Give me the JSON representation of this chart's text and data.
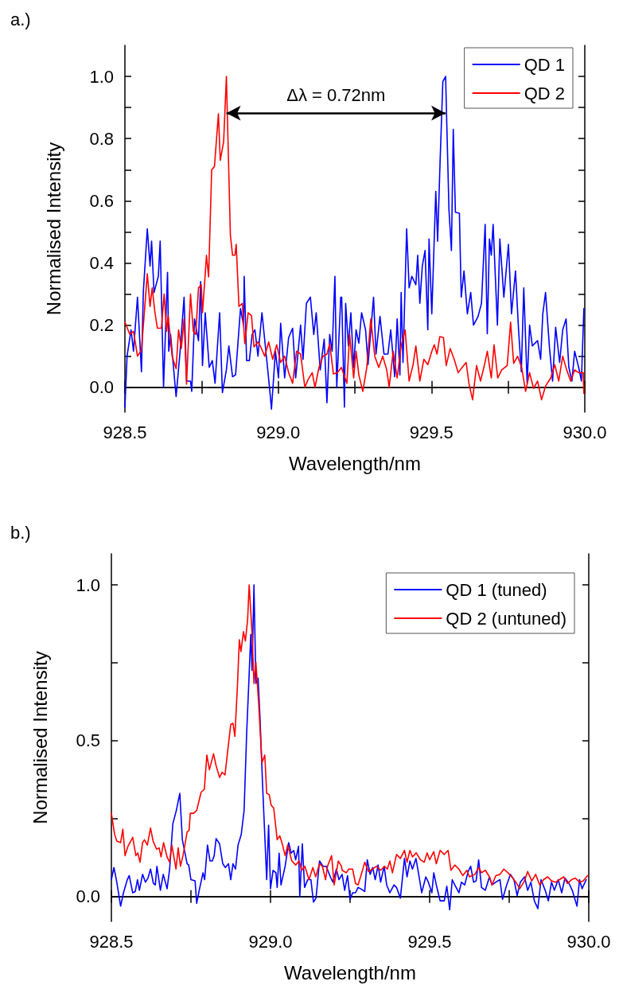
{
  "chart_data": [
    {
      "type": "line",
      "title": "a.)",
      "xlabel": "Wavelength/nm",
      "ylabel": "Normalised Intensity",
      "xlim": [
        928.5,
        930.0
      ],
      "ylim": [
        -0.08,
        1.1
      ],
      "xticks": [
        {
          "value": 928.5,
          "label": "928.5"
        },
        {
          "value": 928.75,
          "label": null
        },
        {
          "value": 929.0,
          "label": "929.0"
        },
        {
          "value": 929.25,
          "label": null
        },
        {
          "value": 929.5,
          "label": "929.5"
        },
        {
          "value": 929.75,
          "label": null
        },
        {
          "value": 930.0,
          "label": "930.0"
        }
      ],
      "yticks": [
        {
          "value": 0,
          "label": "0.0"
        },
        {
          "value": 0.1,
          "label": null
        },
        0.2,
        {
          "value": 0.3,
          "label": null
        },
        0.4,
        {
          "value": 0.5,
          "label": null
        },
        0.6,
        {
          "value": 0.7,
          "label": null
        },
        0.8,
        {
          "value": 0.9,
          "label": null
        },
        {
          "value": 1.0,
          "label": "1.0"
        }
      ],
      "legend": "top right",
      "marker": "none",
      "line_style": "solid",
      "annotations": [
        "Δλ = 0.72nm"
      ],
      "series": [
        {
          "name": "QD 1",
          "color": "#0000ff",
          "x": [
            928.5,
            928.507,
            928.52,
            928.528,
            928.541,
            928.554,
            928.56,
            928.573,
            928.582,
            928.587,
            928.595,
            928.609,
            928.615,
            928.626,
            928.639,
            928.643,
            928.649,
            928.667,
            928.68,
            928.693,
            928.701,
            928.714,
            928.718,
            928.727,
            928.74,
            928.747,
            928.753,
            928.762,
            928.775,
            928.785,
            928.794,
            928.809,
            928.818,
            928.831,
            928.839,
            928.851,
            928.861,
            928.877,
            928.887,
            928.889,
            928.897,
            928.906,
            928.915,
            928.924,
            928.934,
            928.947,
            928.958,
            928.972,
            928.978,
            928.991,
            929.001,
            929.008,
            929.021,
            929.034,
            929.047,
            929.057,
            929.073,
            929.081,
            929.092,
            929.105,
            929.116,
            929.124,
            929.137,
            929.15,
            929.159,
            929.168,
            929.176,
            929.185,
            929.191,
            929.204,
            929.207,
            929.216,
            929.22,
            929.229,
            929.237,
            929.246,
            929.254,
            929.263,
            929.272,
            929.285,
            929.293,
            929.311,
            929.319,
            929.332,
            929.345,
            929.358,
            929.367,
            929.38,
            929.388,
            929.397,
            929.401,
            929.407,
            929.419,
            929.427,
            929.436,
            929.449,
            929.455,
            929.462,
            929.47,
            929.479,
            929.488,
            929.492,
            929.501,
            929.514,
            929.52,
            929.528,
            929.537,
            929.546,
            929.557,
            929.565,
            929.571,
            929.578,
            929.591,
            929.597,
            929.606,
            929.617,
            929.628,
            929.637,
            929.652,
            929.663,
            929.675,
            929.682,
            929.689,
            929.695,
            929.701,
            929.715,
            929.723,
            929.736,
            929.751,
            929.761,
            929.774,
            929.784,
            929.793,
            929.801,
            929.812,
            929.82,
            929.829,
            929.846,
            929.856,
            929.863,
            929.872,
            929.885,
            929.895,
            929.905,
            929.918,
            929.928,
            929.939,
            929.948,
            929.958,
            929.967,
            929.98,
            929.989,
            929.997
          ],
          "values": [
            -0.064,
            0.1,
            0.185,
            0.116,
            0.29,
            0.05,
            0.305,
            0.51,
            0.39,
            0.47,
            0.305,
            0.357,
            0.47,
            0.0,
            0.37,
            0.116,
            0.17,
            -0.03,
            0.116,
            0.29,
            0.02,
            0.02,
            -0.013,
            0.22,
            0.15,
            0.34,
            0.07,
            0.24,
            0.064,
            0.086,
            0.013,
            0.24,
            -0.017,
            0.056,
            0.133,
            0.034,
            0.04,
            0.253,
            0.2,
            0.357,
            0.086,
            0.086,
            0.17,
            0.185,
            0.1,
            0.24,
            0.133,
            -0.004,
            -0.07,
            0.116,
            0.03,
            0.206,
            0.03,
            0.16,
            0.19,
            0.03,
            0.2,
            0.09,
            0.27,
            0.29,
            0.17,
            0.24,
            0.056,
            0.155,
            -0.05,
            0.17,
            0.116,
            0.357,
            0.0,
            0.29,
            0.29,
            -0.064,
            0.27,
            0.133,
            0.24,
            0.064,
            0.185,
            0.142,
            0.24,
            0.185,
            0.073,
            0.29,
            0.107,
            0.228,
            0.107,
            0.107,
            0.185,
            0.034,
            0.22,
            0.04,
            0.305,
            0.08,
            0.51,
            0.32,
            0.357,
            0.33,
            0.425,
            0.27,
            0.39,
            0.44,
            0.185,
            0.477,
            0.236,
            0.63,
            0.47,
            0.726,
            0.984,
            1.0,
            0.57,
            0.44,
            0.83,
            0.563,
            0.56,
            0.29,
            0.374,
            0.236,
            0.305,
            0.2,
            0.228,
            0.27,
            0.524,
            0.172,
            0.477,
            0.425,
            0.524,
            0.2,
            0.477,
            0.29,
            0.46,
            0.236,
            0.374,
            0.185,
            0.05,
            0.32,
            0.013,
            0.2,
            0.133,
            0.15,
            0.09,
            0.236,
            0.305,
            0.125,
            0.02,
            0.193,
            0.08,
            0.185,
            0.22,
            0.064,
            0.02,
            0.116,
            0.064,
            0.02,
            0.253
          ]
        },
        {
          "name": "QD 2",
          "color": "#ff0000",
          "x": [
            928.5,
            928.516,
            928.528,
            928.541,
            928.554,
            928.573,
            928.582,
            928.589,
            928.598,
            928.606,
            928.619,
            928.628,
            928.636,
            928.641,
            928.654,
            928.667,
            928.675,
            928.684,
            928.693,
            928.701,
            928.714,
            928.723,
            928.731,
            928.74,
            928.749,
            928.753,
            928.762,
            928.766,
            928.773,
            928.783,
            928.792,
            928.805,
            928.811,
            928.822,
            928.831,
            928.844,
            928.851,
            928.859,
            928.863,
            928.872,
            928.883,
            928.891,
            928.902,
            928.913,
            928.921,
            928.934,
            928.943,
            928.956,
            928.969,
            928.982,
            928.995,
            929.008,
            929.021,
            929.034,
            929.047,
            929.06,
            929.073,
            929.087,
            929.098,
            929.111,
            929.12,
            929.133,
            929.146,
            929.159,
            929.168,
            929.18,
            929.193,
            929.206,
            929.224,
            929.233,
            929.246,
            929.254,
            929.263,
            929.276,
            929.289,
            929.302,
            929.315,
            929.328,
            929.341,
            929.354,
            929.362,
            929.375,
            929.388,
            929.401,
            929.414,
            929.427,
            929.44,
            929.449,
            929.462,
            929.475,
            929.488,
            929.501,
            929.509,
            929.518,
            929.527,
            929.539,
            929.548,
            929.561,
            929.574,
            929.587,
            929.6,
            929.613,
            929.622,
            929.634,
            929.647,
            929.66,
            929.673,
            929.682,
            929.695,
            929.704,
            929.716,
            929.729,
            929.747,
            929.758,
            929.768,
            929.781,
            929.794,
            929.807,
            929.82,
            929.833,
            929.846,
            929.859,
            929.872,
            929.889,
            929.902,
            929.915,
            929.928,
            929.941,
            929.954,
            929.967,
            929.98,
            929.995,
            929.997
          ],
          "values": [
            0.21,
            0.17,
            0.18,
            0.1,
            0.12,
            0.365,
            0.26,
            0.32,
            0.24,
            0.19,
            0.19,
            0.3,
            0.18,
            0.23,
            0.1,
            0.06,
            0.185,
            0.125,
            0.22,
            0.01,
            0.3,
            0.18,
            0.17,
            0.32,
            0.33,
            0.24,
            0.365,
            0.425,
            0.355,
            0.7,
            0.71,
            0.88,
            0.73,
            0.79,
            1.0,
            0.49,
            0.425,
            0.425,
            0.46,
            0.26,
            0.27,
            0.14,
            0.24,
            0.23,
            0.13,
            0.146,
            0.13,
            0.1,
            0.146,
            0.09,
            0.137,
            0.08,
            0.1,
            0.047,
            0.013,
            0.116,
            0.107,
            0.0,
            0.026,
            0.047,
            0.0,
            0.064,
            0.1,
            0.107,
            0.14,
            0.043,
            0.047,
            0.064,
            0.013,
            0.17,
            0.03,
            0.116,
            0.04,
            -0.013,
            0.064,
            0.22,
            0.1,
            0.064,
            0.1,
            0.056,
            0.0,
            0.116,
            0.03,
            0.133,
            0.185,
            0.02,
            0.073,
            0.133,
            0.02,
            0.09,
            0.073,
            0.116,
            0.137,
            0.107,
            0.163,
            0.16,
            0.07,
            0.125,
            0.09,
            0.047,
            0.064,
            0.08,
            0.013,
            -0.04,
            0.07,
            0.02,
            0.073,
            0.116,
            0.03,
            0.137,
            0.03,
            0.056,
            0.07,
            0.21,
            0.077,
            0.1,
            0.064,
            -0.013,
            0.047,
            -0.004,
            0.02,
            -0.04,
            0.004,
            0.03,
            0.073,
            0.02,
            0.1,
            0.056,
            0.02,
            0.056,
            0.047,
            0.047,
            -0.02
          ]
        }
      ]
    },
    {
      "type": "line",
      "title": "b.)",
      "xlabel": "Wavelength/nm",
      "ylabel": "Normalised Intensity",
      "xlim": [
        928.5,
        930.0
      ],
      "ylim": [
        -0.08,
        1.1
      ],
      "xticks": [
        {
          "value": 928.5,
          "label": "928.5"
        },
        {
          "value": 928.75,
          "label": null
        },
        {
          "value": 929.0,
          "label": "929.0"
        },
        {
          "value": 929.25,
          "label": null
        },
        {
          "value": 929.5,
          "label": "929.5"
        },
        {
          "value": 929.75,
          "label": null
        },
        {
          "value": 930.0,
          "label": "930.0"
        }
      ],
      "yticks": [
        {
          "value": 0,
          "label": "0.0"
        },
        {
          "value": 0.25,
          "label": null
        },
        0.5,
        {
          "value": 0.75,
          "label": null
        },
        {
          "value": 1.0,
          "label": "1.0"
        }
      ],
      "legend": "top right",
      "marker": "none",
      "line_style": "solid",
      "series": [
        {
          "name": "QD 1 (tuned)",
          "color": "#0000ff",
          "x": [
            928.5,
            928.508,
            928.517,
            928.529,
            928.538,
            928.55,
            928.556,
            928.567,
            928.575,
            928.582,
            928.588,
            928.598,
            928.607,
            928.615,
            928.623,
            928.632,
            928.638,
            928.643,
            928.654,
            928.663,
            928.675,
            928.683,
            928.693,
            928.704,
            928.715,
            928.723,
            928.738,
            928.743,
            928.75,
            928.763,
            928.768,
            928.777,
            928.788,
            928.793,
            928.802,
            928.81,
            928.817,
            928.823,
            928.829,
            928.84,
            928.85,
            928.858,
            928.868,
            928.875,
            928.882,
            928.89,
            928.898,
            928.908,
            928.917,
            928.925,
            928.932,
            928.938,
            928.942,
            928.948,
            928.954,
            928.961,
            928.967,
            928.975,
            928.988,
            928.994,
            929.0,
            929.008,
            929.017,
            929.021,
            929.027,
            929.033,
            929.046,
            929.057,
            929.065,
            929.073,
            929.079,
            929.088,
            929.092,
            929.1,
            929.107,
            929.117,
            929.127,
            929.135,
            929.143,
            929.154,
            929.165,
            929.175,
            929.188,
            929.196,
            929.207,
            929.215,
            929.225,
            929.233,
            929.242,
            929.25,
            929.258,
            929.267,
            929.275,
            929.283,
            929.296,
            929.304,
            929.313,
            929.321,
            929.329,
            929.338,
            929.346,
            929.357,
            929.365,
            929.375,
            929.388,
            929.396,
            929.408,
            929.421,
            929.429,
            929.438,
            929.446,
            929.457,
            929.467,
            929.475,
            929.488,
            929.496,
            929.507,
            929.513,
            929.521,
            929.533,
            929.546,
            929.554,
            929.563,
            929.571,
            929.579,
            929.592,
            929.6,
            929.61,
            929.621,
            929.629,
            929.638,
            929.646,
            929.654,
            929.663,
            929.675,
            929.688,
            929.696,
            929.708,
            929.721,
            929.729,
            929.742,
            929.754,
            929.765,
            929.775,
            929.785,
            929.798,
            929.808,
            929.818,
            929.829,
            929.84,
            929.85,
            929.863,
            929.873,
            929.883,
            929.892,
            929.904,
            929.915,
            929.925,
            929.938,
            929.948,
            929.963,
            929.971,
            929.979,
            929.992
          ],
          "values": [
            0.054,
            0.093,
            0.046,
            -0.031,
            0.012,
            0.054,
            0.067,
            0.012,
            0.016,
            0.054,
            0.02,
            0.071,
            0.046,
            0.059,
            0.088,
            0.042,
            0.037,
            0.097,
            0.02,
            0.071,
            0.025,
            0.088,
            0.233,
            0.276,
            0.331,
            0.182,
            0.105,
            0.101,
            0.054,
            0.05,
            -0.022,
            0.025,
            0.076,
            0.054,
            0.165,
            0.114,
            0.114,
            0.131,
            0.186,
            0.169,
            0.105,
            0.093,
            0.105,
            0.054,
            0.105,
            0.088,
            0.165,
            0.199,
            0.276,
            0.522,
            0.692,
            0.841,
            0.725,
            1.0,
            0.684,
            0.701,
            0.573,
            0.361,
            0.054,
            0.229,
            0.025,
            0.084,
            0.076,
            0.029,
            0.139,
            0.037,
            0.097,
            0.173,
            0.139,
            0.148,
            0.118,
            0.161,
            -0.001,
            0.169,
            0.029,
            0.054,
            0.054,
            -0.018,
            -0.005,
            0.114,
            0.097,
            0.097,
            0.063,
            0.046,
            0.088,
            0.054,
            0.071,
            0.02,
            0.067,
            -0.009,
            0.012,
            0.012,
            0.029,
            0.025,
            0.016,
            0.118,
            0.071,
            0.093,
            0.054,
            0.101,
            0.046,
            0.097,
            0.037,
            0.012,
            0.037,
            0.029,
            -0.005,
            0.122,
            0.063,
            0.114,
            0.088,
            0.122,
            0.063,
            0.012,
            0.063,
            0.046,
            0.012,
            0.076,
            0.037,
            -0.014,
            -0.014,
            0.033,
            -0.043,
            0.054,
            0.037,
            0.012,
            0.046,
            0.037,
            0.08,
            0.097,
            0.046,
            0.05,
            0.118,
            0.029,
            0.02,
            0.063,
            0.037,
            0.046,
            0.054,
            -0.009,
            0.037,
            0.071,
            0.054,
            0.003,
            0.046,
            0.063,
            0.02,
            0.046,
            -0.014,
            -0.039,
            0.054,
            0.02,
            -0.014,
            0.046,
            0.02,
            0.054,
            0.012,
            0.059,
            0.042,
            0.02,
            -0.031,
            0.054,
            0.025,
            0.054
          ]
        },
        {
          "name": "QD 2 (untuned)",
          "color": "#ff0000",
          "x": [
            928.5,
            928.51,
            928.517,
            928.529,
            928.536,
            928.543,
            928.552,
            928.567,
            928.577,
            928.583,
            928.59,
            928.598,
            928.604,
            928.613,
            928.623,
            928.631,
            928.642,
            928.65,
            928.656,
            928.664,
            928.675,
            928.683,
            928.69,
            928.703,
            928.71,
            928.717,
            928.725,
            928.738,
            928.744,
            928.748,
            928.758,
            928.768,
            928.782,
            928.792,
            928.8,
            928.808,
            928.821,
            928.829,
            928.84,
            928.848,
            928.857,
            928.865,
            928.875,
            928.882,
            928.888,
            928.896,
            928.902,
            928.907,
            928.915,
            928.921,
            928.928,
            928.933,
            928.942,
            928.948,
            928.954,
            928.963,
            928.973,
            928.982,
            928.988,
            928.996,
            929.002,
            929.01,
            929.021,
            929.029,
            929.038,
            929.046,
            929.054,
            929.067,
            929.079,
            929.09,
            929.098,
            929.108,
            929.121,
            929.133,
            929.142,
            929.154,
            929.163,
            929.173,
            929.179,
            929.192,
            929.2,
            929.213,
            929.223,
            929.225,
            929.238,
            929.246,
            929.258,
            929.267,
            929.275,
            929.288,
            929.296,
            929.308,
            929.321,
            929.333,
            929.346,
            929.358,
            929.367,
            929.375,
            929.383,
            929.396,
            929.408,
            929.421,
            929.429,
            929.438,
            929.446,
            929.458,
            929.471,
            929.483,
            929.492,
            929.5,
            929.513,
            929.521,
            929.533,
            929.546,
            929.558,
            929.567,
            929.579,
            929.592,
            929.604,
            929.617,
            929.625,
            929.642,
            929.654,
            929.663,
            929.675,
            929.688,
            929.696,
            929.708,
            929.721,
            929.733,
            929.746,
            929.758,
            929.771,
            929.783,
            929.796,
            929.808,
            929.821,
            929.833,
            929.846,
            929.858,
            929.871,
            929.883,
            929.896,
            929.908,
            929.921,
            929.933,
            929.946,
            929.958,
            929.971,
            929.983,
            929.996
          ],
          "values": [
            0.267,
            0.2,
            0.178,
            0.173,
            0.216,
            0.131,
            0.161,
            0.19,
            0.131,
            0.14,
            0.11,
            0.173,
            0.182,
            0.165,
            0.22,
            0.178,
            0.152,
            0.156,
            0.127,
            0.173,
            0.127,
            0.11,
            0.165,
            0.088,
            0.156,
            0.097,
            0.131,
            0.207,
            0.212,
            0.267,
            0.267,
            0.276,
            0.335,
            0.344,
            0.454,
            0.407,
            0.458,
            0.42,
            0.382,
            0.399,
            0.39,
            0.463,
            0.552,
            0.556,
            0.514,
            0.675,
            0.824,
            0.786,
            0.85,
            0.82,
            0.888,
            1.0,
            0.845,
            0.684,
            0.752,
            0.616,
            0.429,
            0.454,
            0.331,
            0.327,
            0.293,
            0.284,
            0.182,
            0.195,
            0.165,
            0.131,
            0.165,
            0.114,
            0.101,
            0.114,
            0.084,
            0.097,
            0.054,
            0.093,
            0.063,
            0.105,
            0.097,
            0.054,
            0.097,
            0.131,
            0.037,
            0.114,
            0.097,
            0.084,
            0.076,
            0.088,
            0.088,
            0.042,
            0.037,
            0.08,
            0.11,
            0.08,
            0.088,
            0.097,
            0.084,
            0.097,
            0.088,
            0.114,
            0.076,
            0.135,
            0.122,
            0.148,
            0.11,
            0.148,
            0.127,
            0.14,
            0.118,
            0.11,
            0.14,
            0.118,
            0.144,
            0.105,
            0.148,
            0.135,
            0.148,
            0.084,
            0.101,
            0.088,
            0.067,
            0.084,
            0.063,
            0.071,
            0.093,
            0.076,
            0.084,
            0.063,
            0.037,
            0.067,
            0.071,
            0.088,
            0.076,
            0.063,
            0.046,
            0.025,
            0.046,
            0.08,
            0.05,
            0.071,
            0.037,
            0.054,
            0.063,
            0.05,
            0.046,
            0.054,
            0.063,
            0.042,
            0.054,
            0.059,
            0.046,
            0.05,
            0.067
          ]
        }
      ]
    }
  ]
}
